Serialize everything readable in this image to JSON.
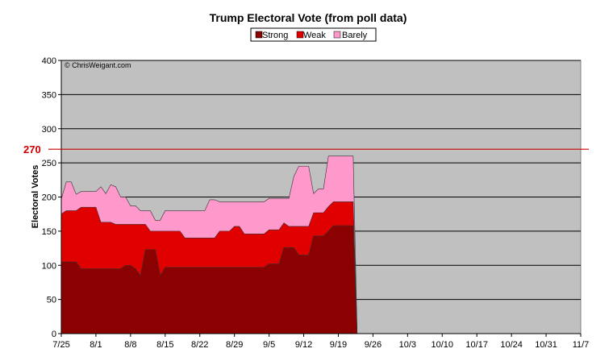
{
  "chart_data": {
    "type": "area",
    "title": "Trump Electoral Vote (from poll data)",
    "xlabel": "",
    "ylabel": "Electoral Votes",
    "ylim": [
      0,
      400
    ],
    "yticks": [
      0,
      50,
      100,
      150,
      200,
      250,
      300,
      350,
      400
    ],
    "x_ticklabels": [
      "7/25",
      "8/1",
      "8/8",
      "8/15",
      "8/22",
      "8/29",
      "9/5",
      "9/12",
      "9/19",
      "9/26",
      "10/3",
      "10/10",
      "10/17",
      "10/24",
      "10/31",
      "11/7"
    ],
    "xlim_days": [
      0,
      105
    ],
    "grid": true,
    "legend_position": "top-center",
    "background_color": "#c0c0c0",
    "copyright": "© ChrisWeigant.com",
    "reference_line": {
      "value": 270,
      "label": "270",
      "color": "#cc0000"
    },
    "x_days": [
      0,
      1,
      2,
      3,
      4,
      5,
      6,
      7,
      8,
      9,
      10,
      11,
      12,
      13,
      14,
      15,
      16,
      17,
      18,
      19,
      20,
      21,
      22,
      23,
      24,
      25,
      26,
      27,
      28,
      29,
      30,
      31,
      32,
      33,
      34,
      35,
      36,
      37,
      38,
      39,
      40,
      41,
      42,
      43,
      44,
      45,
      46,
      47,
      48,
      49,
      50,
      51,
      52,
      53,
      54,
      55,
      56,
      57,
      58,
      59,
      59.8
    ],
    "series": [
      {
        "name": "Strong",
        "color": "#8b0000",
        "values": [
          105,
          105,
          105,
          105,
          95,
          95,
          95,
          95,
          95,
          95,
          95,
          95,
          95,
          100,
          100,
          95,
          85,
          123,
          123,
          123,
          85,
          97,
          97,
          97,
          97,
          97,
          97,
          97,
          97,
          97,
          97,
          97,
          97,
          97,
          97,
          97,
          97,
          97,
          97,
          97,
          97,
          97,
          102,
          102,
          102,
          126,
          126,
          126,
          115,
          115,
          115,
          143,
          143,
          143,
          150,
          158,
          158,
          158,
          158,
          158,
          0
        ]
      },
      {
        "name": "Weak",
        "color": "#e00000",
        "values": [
          175,
          180,
          180,
          180,
          185,
          185,
          185,
          185,
          163,
          163,
          163,
          160,
          160,
          160,
          160,
          160,
          160,
          160,
          150,
          150,
          150,
          150,
          150,
          150,
          150,
          140,
          140,
          140,
          140,
          140,
          140,
          140,
          150,
          150,
          150,
          157,
          157,
          146,
          146,
          146,
          146,
          146,
          152,
          152,
          152,
          162,
          157,
          157,
          157,
          157,
          157,
          177,
          177,
          177,
          186,
          193,
          193,
          193,
          193,
          193,
          0
        ]
      },
      {
        "name": "Barely",
        "color": "#ff99cc",
        "values": [
          197,
          222,
          222,
          204,
          208,
          208,
          208,
          208,
          215,
          205,
          218,
          215,
          200,
          200,
          187,
          187,
          180,
          180,
          180,
          166,
          166,
          180,
          180,
          180,
          180,
          180,
          180,
          180,
          180,
          180,
          196,
          196,
          193,
          193,
          193,
          193,
          193,
          193,
          193,
          193,
          193,
          193,
          198,
          198,
          198,
          198,
          198,
          230,
          245,
          245,
          245,
          205,
          212,
          212,
          260,
          260,
          260,
          260,
          260,
          260,
          0
        ]
      }
    ]
  }
}
